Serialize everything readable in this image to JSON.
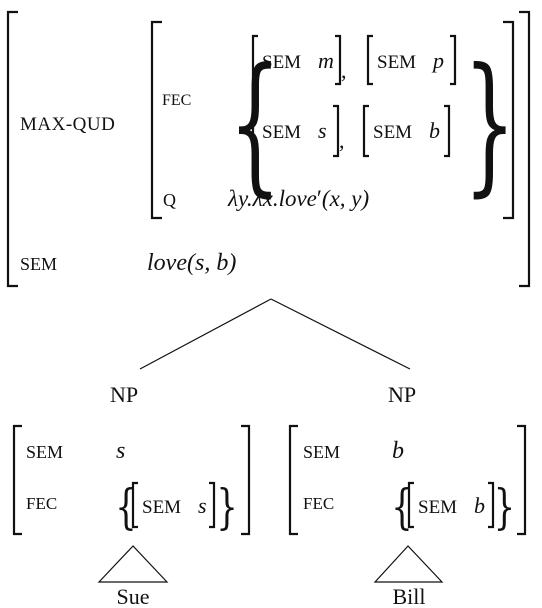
{
  "root": {
    "max_qud_label": "MAX-QUD",
    "fec_label": "FEC",
    "fec_items": [
      {
        "attr": "SEM",
        "val": "m"
      },
      {
        "attr": "SEM",
        "val": "p"
      },
      {
        "attr": "SEM",
        "val": "s"
      },
      {
        "attr": "SEM",
        "val": "b"
      }
    ],
    "q_label": "Q",
    "q_value": {
      "lambda1": "λy.λx.",
      "pred": "love",
      "prime": "′",
      "args": "(x, y)"
    },
    "sem_label": "SEM",
    "sem_value": {
      "pred": "love",
      "args": "(s, b)"
    }
  },
  "left": {
    "category": "NP",
    "sem_label": "SEM",
    "sem_value": "s",
    "fec_label": "FEC",
    "fec_item": {
      "attr": "SEM",
      "val": "s"
    },
    "word": "Sue"
  },
  "right": {
    "category": "NP",
    "sem_label": "SEM",
    "sem_value": "b",
    "fec_label": "FEC",
    "fec_item": {
      "attr": "SEM",
      "val": "b"
    },
    "word": "Bill"
  }
}
